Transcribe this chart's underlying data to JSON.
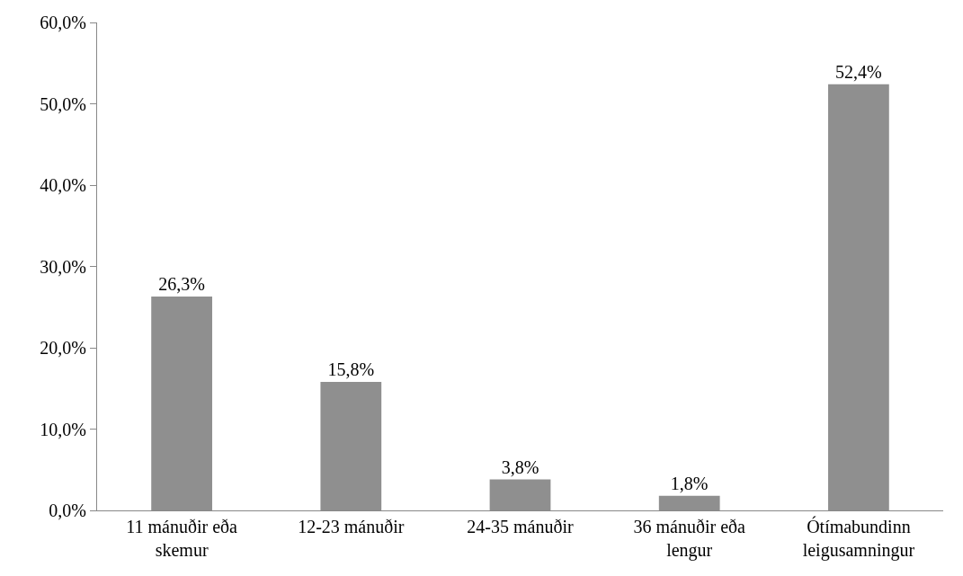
{
  "chart_data": {
    "type": "bar",
    "categories": [
      "11 mánuðir eða skemur",
      "12-23 mánuðir",
      "24-35 mánuðir",
      "36 mánuðir eða lengur",
      "Ótímabundinn leigusamningur"
    ],
    "values": [
      26.3,
      15.8,
      3.8,
      1.8,
      52.4
    ],
    "value_labels": [
      "26,3%",
      "15,8%",
      "3,8%",
      "1,8%",
      "52,4%"
    ],
    "color": "#8f8f8f",
    "ylim": [
      0,
      60
    ],
    "yticks": [
      {
        "value": 0,
        "label": "0,0%"
      },
      {
        "value": 10,
        "label": "10,0%"
      },
      {
        "value": 20,
        "label": "20,0%"
      },
      {
        "value": 30,
        "label": "30,0%"
      },
      {
        "value": 40,
        "label": "40,0%"
      },
      {
        "value": 50,
        "label": "50,0%"
      },
      {
        "value": 60,
        "label": "60,0%"
      }
    ],
    "grid": false
  }
}
